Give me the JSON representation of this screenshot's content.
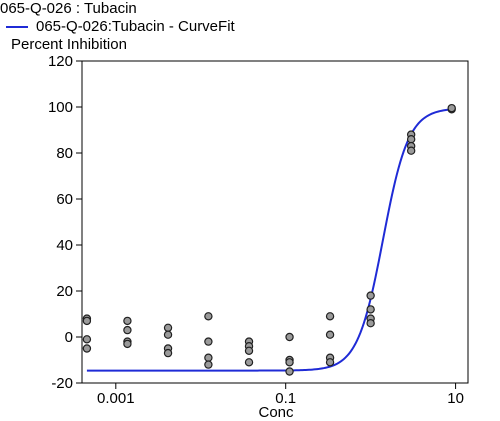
{
  "header": {
    "title": "065-Q-026  : Tubacin",
    "legend_label": "065-Q-026:Tubacin - CurveFit"
  },
  "colors": {
    "curve": "#1f2bd6",
    "point_fill": "#9a9a9a",
    "point_stroke": "#202020"
  },
  "chart_data": {
    "type": "scatter",
    "title": "",
    "ylabel": "Percent Inhibition",
    "xlabel": "Conc",
    "x_scale": "log",
    "xlim": [
      0.0004,
      14
    ],
    "ylim": [
      -20,
      120
    ],
    "x_ticks": [
      0.001,
      0.1,
      10
    ],
    "x_tick_labels": [
      "0.001",
      "0.1",
      "10"
    ],
    "y_ticks": [
      -20,
      0,
      20,
      40,
      60,
      80,
      100,
      120
    ],
    "y_tick_labels": [
      "-20",
      "0",
      "20",
      "40",
      "60",
      "80",
      "100",
      "120"
    ],
    "grid": false,
    "legend_position": "top-left",
    "points": [
      {
        "x": 0.000457,
        "y": 8.0
      },
      {
        "x": 0.000457,
        "y": 7.0
      },
      {
        "x": 0.000457,
        "y": -1.0
      },
      {
        "x": 0.000457,
        "y": -5.0
      },
      {
        "x": 0.00137,
        "y": 7.0
      },
      {
        "x": 0.00137,
        "y": 3.0
      },
      {
        "x": 0.00137,
        "y": -2.0
      },
      {
        "x": 0.00137,
        "y": -3.0
      },
      {
        "x": 0.00412,
        "y": 4.0
      },
      {
        "x": 0.00412,
        "y": 1.0
      },
      {
        "x": 0.00412,
        "y": -5.0
      },
      {
        "x": 0.00412,
        "y": -7.0
      },
      {
        "x": 0.0123,
        "y": 9.0
      },
      {
        "x": 0.0123,
        "y": -2.0
      },
      {
        "x": 0.0123,
        "y": -9.0
      },
      {
        "x": 0.0123,
        "y": -12.0
      },
      {
        "x": 0.037,
        "y": -2.0
      },
      {
        "x": 0.037,
        "y": -4.0
      },
      {
        "x": 0.037,
        "y": -6.0
      },
      {
        "x": 0.037,
        "y": -11.0
      },
      {
        "x": 0.111,
        "y": 0.0
      },
      {
        "x": 0.111,
        "y": -10.0
      },
      {
        "x": 0.111,
        "y": -11.0
      },
      {
        "x": 0.111,
        "y": -15.0
      },
      {
        "x": 0.333,
        "y": 9.0
      },
      {
        "x": 0.333,
        "y": 1.0
      },
      {
        "x": 0.333,
        "y": -9.0
      },
      {
        "x": 0.333,
        "y": -11.0
      },
      {
        "x": 1.0,
        "y": 18.0
      },
      {
        "x": 1.0,
        "y": 12.0
      },
      {
        "x": 1.0,
        "y": 8.0
      },
      {
        "x": 1.0,
        "y": 6.0
      },
      {
        "x": 3.0,
        "y": 88.0
      },
      {
        "x": 3.0,
        "y": 86.0
      },
      {
        "x": 3.0,
        "y": 83.0
      },
      {
        "x": 3.0,
        "y": 81.0
      },
      {
        "x": 9.0,
        "y": 99.0
      },
      {
        "x": 9.0,
        "y": 99.5
      }
    ],
    "curve": {
      "model": "4PL",
      "bottom": -14.6,
      "top": 99.5,
      "ec50": 1.4,
      "hill": 2.9
    }
  }
}
